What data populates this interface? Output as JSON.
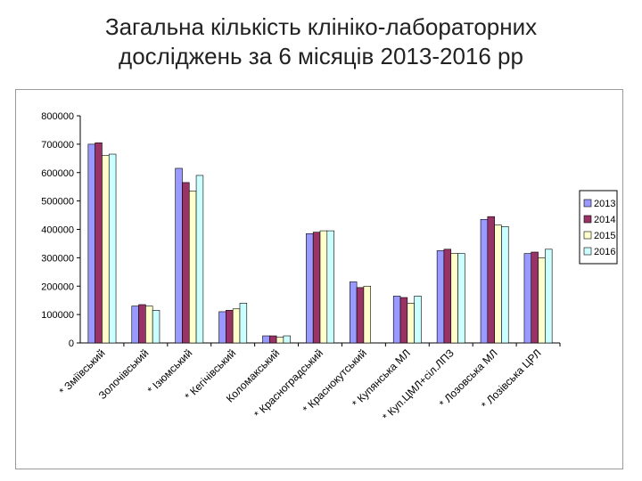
{
  "title_lines": [
    "Загальна кількість клініко-лабораторних",
    "досліджень за 6 місяців 2013-2016 рр"
  ],
  "chart_data": {
    "type": "bar",
    "title": "Загальна кількість клініко-лабораторних досліджень за 6 місяців 2013-2016 рр",
    "categories": [
      "* Зміївський",
      "Золочівський",
      "* Ізюмський",
      "* Кегічівський",
      "Коломакський",
      "* Красноградський",
      "* Краснокутський",
      "* Купянська МЛ",
      "* Куп.ЦМЛ+сіл.ЛПЗ",
      "* Лозовська МЛ",
      "* Лозівська ЦРЛ"
    ],
    "series": [
      {
        "name": "2013",
        "color": "#9999ff",
        "values": [
          700000,
          130000,
          615000,
          110000,
          25000,
          385000,
          215000,
          165000,
          325000,
          435000,
          315000
        ]
      },
      {
        "name": "2014",
        "color": "#993366",
        "values": [
          705000,
          135000,
          565000,
          115000,
          25000,
          390000,
          195000,
          160000,
          330000,
          445000,
          320000
        ]
      },
      {
        "name": "2015",
        "color": "#ffffcc",
        "values": [
          660000,
          130000,
          535000,
          120000,
          20000,
          395000,
          200000,
          140000,
          315000,
          415000,
          300000
        ]
      },
      {
        "name": "2016",
        "color": "#ccffff",
        "values": [
          665000,
          115000,
          590000,
          140000,
          25000,
          395000,
          0,
          165000,
          315000,
          410000,
          330000
        ]
      }
    ],
    "yticks": [
      0,
      100000,
      200000,
      300000,
      400000,
      500000,
      600000,
      700000,
      800000
    ],
    "ylim": [
      0,
      800000
    ],
    "grid": false,
    "legend_position": "right",
    "xlabel": "",
    "ylabel": ""
  }
}
